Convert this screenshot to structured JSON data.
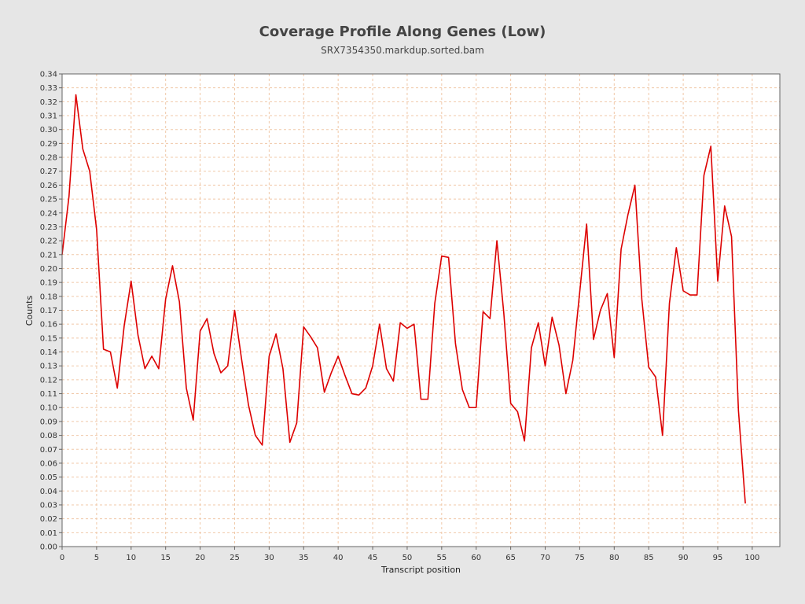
{
  "chart_data": {
    "type": "line",
    "title": "Coverage Profile Along Genes (Low)",
    "subtitle": "SRX7354350.markdup.sorted.bam",
    "xlabel": "Transcript position",
    "ylabel": "Counts",
    "xlim": [
      0,
      104
    ],
    "ylim": [
      0,
      0.34
    ],
    "x_ticks": [
      0,
      5,
      10,
      15,
      20,
      25,
      30,
      35,
      40,
      45,
      50,
      55,
      60,
      65,
      70,
      75,
      80,
      85,
      90,
      95,
      100
    ],
    "y_ticks": [
      "0.00",
      "0.01",
      "0.02",
      "0.03",
      "0.04",
      "0.05",
      "0.06",
      "0.07",
      "0.08",
      "0.09",
      "0.10",
      "0.11",
      "0.12",
      "0.13",
      "0.14",
      "0.15",
      "0.16",
      "0.17",
      "0.18",
      "0.19",
      "0.20",
      "0.21",
      "0.22",
      "0.23",
      "0.24",
      "0.25",
      "0.26",
      "0.27",
      "0.28",
      "0.29",
      "0.30",
      "0.31",
      "0.32",
      "0.33",
      "0.34"
    ],
    "grid": true,
    "legend": "none",
    "series": [
      {
        "color": "#dd0000",
        "x": [
          0,
          1,
          2,
          3,
          4,
          5,
          6,
          7,
          8,
          9,
          10,
          11,
          12,
          13,
          14,
          15,
          16,
          17,
          18,
          19,
          20,
          21,
          22,
          23,
          24,
          25,
          26,
          27,
          28,
          29,
          30,
          31,
          32,
          33,
          34,
          35,
          36,
          37,
          38,
          39,
          40,
          41,
          42,
          43,
          44,
          45,
          46,
          47,
          48,
          49,
          50,
          51,
          52,
          53,
          54,
          55,
          56,
          57,
          58,
          59,
          60,
          61,
          62,
          63,
          64,
          65,
          66,
          67,
          68,
          69,
          70,
          71,
          72,
          73,
          74,
          75,
          76,
          77,
          78,
          79,
          80,
          81,
          82,
          83,
          84,
          85,
          86,
          87,
          88,
          89,
          90,
          91,
          92,
          93,
          94,
          95,
          96,
          97,
          98,
          99
        ],
        "values": [
          0.21,
          0.252,
          0.325,
          0.286,
          0.27,
          0.228,
          0.142,
          0.14,
          0.114,
          0.159,
          0.191,
          0.152,
          0.128,
          0.137,
          0.128,
          0.178,
          0.202,
          0.176,
          0.114,
          0.091,
          0.155,
          0.164,
          0.139,
          0.125,
          0.13,
          0.17,
          0.135,
          0.102,
          0.08,
          0.073,
          0.137,
          0.153,
          0.128,
          0.075,
          0.089,
          0.158,
          0.151,
          0.143,
          0.111,
          0.125,
          0.137,
          0.123,
          0.11,
          0.109,
          0.114,
          0.13,
          0.16,
          0.128,
          0.119,
          0.161,
          0.157,
          0.16,
          0.106,
          0.106,
          0.175,
          0.209,
          0.208,
          0.146,
          0.113,
          0.1,
          0.1,
          0.169,
          0.164,
          0.22,
          0.168,
          0.103,
          0.097,
          0.076,
          0.143,
          0.161,
          0.13,
          0.165,
          0.145,
          0.11,
          0.134,
          0.183,
          0.232,
          0.149,
          0.17,
          0.182,
          0.136,
          0.214,
          0.239,
          0.26,
          0.178,
          0.129,
          0.122,
          0.08,
          0.175,
          0.215,
          0.184,
          0.181,
          0.181,
          0.267,
          0.288,
          0.191,
          0.245,
          0.223,
          0.098,
          0.031
        ]
      }
    ]
  }
}
